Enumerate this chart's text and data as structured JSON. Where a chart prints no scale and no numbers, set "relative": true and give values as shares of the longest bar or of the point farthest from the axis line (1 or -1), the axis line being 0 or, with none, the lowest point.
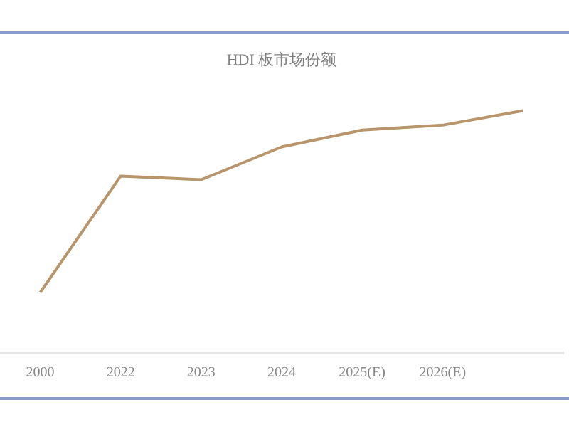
{
  "chart_data": {
    "type": "line",
    "title": "HDI 板市场份额",
    "categories": [
      "2000",
      "2022",
      "2023",
      "2024",
      "2025(E)",
      "2026(E)",
      null
    ],
    "relative": true,
    "series": [
      {
        "color": "#b8956a",
        "values": [
          0.25,
          0.73,
          0.715,
          0.85,
          0.92,
          0.94,
          1
        ]
      }
    ],
    "grid": false,
    "legend": false,
    "marker": "none"
  }
}
